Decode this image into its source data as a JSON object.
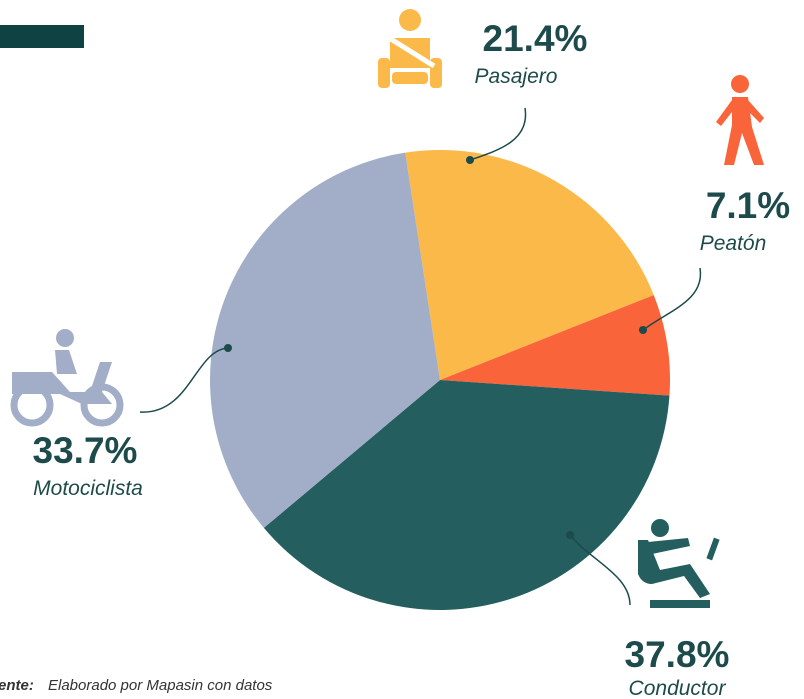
{
  "chart_data": {
    "type": "pie",
    "categories": [
      "Pasajero",
      "Peatón",
      "Conductor",
      "Motociclista"
    ],
    "values": [
      21.4,
      7.1,
      37.8,
      33.7
    ],
    "value_labels": [
      "21.4%",
      "7.1%",
      "37.8%",
      "33.7%"
    ],
    "colors": [
      "#fbb94a",
      "#f9643a",
      "#245e5e",
      "#a2aec7"
    ],
    "source_label": "ente:",
    "source_text": "Elaborado por Mapasin con datos"
  }
}
